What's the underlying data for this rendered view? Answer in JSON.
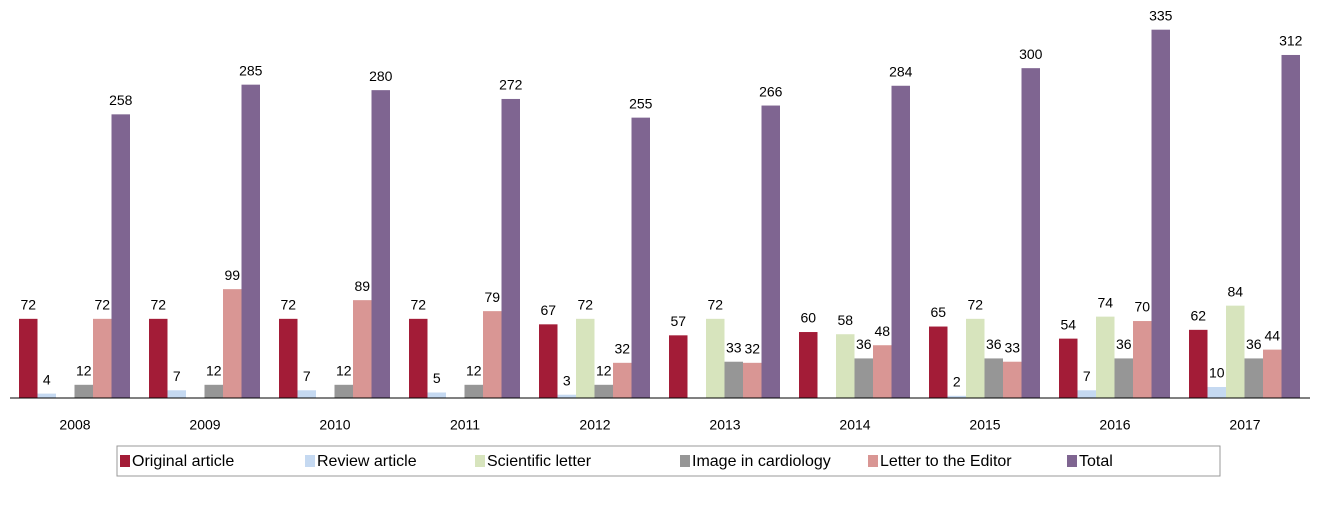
{
  "chart_data": {
    "type": "bar",
    "categories": [
      "2008",
      "2009",
      "2010",
      "2011",
      "2012",
      "2013",
      "2014",
      "2015",
      "2016",
      "2017"
    ],
    "series": [
      {
        "name": "Original article",
        "color": "#a31c37",
        "values": [
          72,
          72,
          72,
          72,
          67,
          57,
          60,
          65,
          54,
          62
        ]
      },
      {
        "name": "Review article",
        "color": "#c5d9f1",
        "values": [
          4,
          7,
          7,
          5,
          3,
          null,
          null,
          2,
          7,
          10
        ]
      },
      {
        "name": "Scientific letter",
        "color": "#d7e4bd",
        "values": [
          null,
          null,
          null,
          null,
          72,
          72,
          58,
          72,
          74,
          84
        ]
      },
      {
        "name": "Image in cardiology",
        "color": "#969696",
        "values": [
          12,
          12,
          12,
          12,
          12,
          33,
          36,
          36,
          36,
          36
        ]
      },
      {
        "name": "Letter to the Editor",
        "color": "#d99694",
        "values": [
          72,
          99,
          89,
          79,
          32,
          32,
          48,
          33,
          70,
          44
        ]
      },
      {
        "name": "Total",
        "color": "#7f6591",
        "values": [
          258,
          285,
          280,
          272,
          255,
          266,
          284,
          300,
          335,
          312
        ]
      }
    ],
    "ylim": [
      0,
      362
    ],
    "legend": "bottom"
  }
}
